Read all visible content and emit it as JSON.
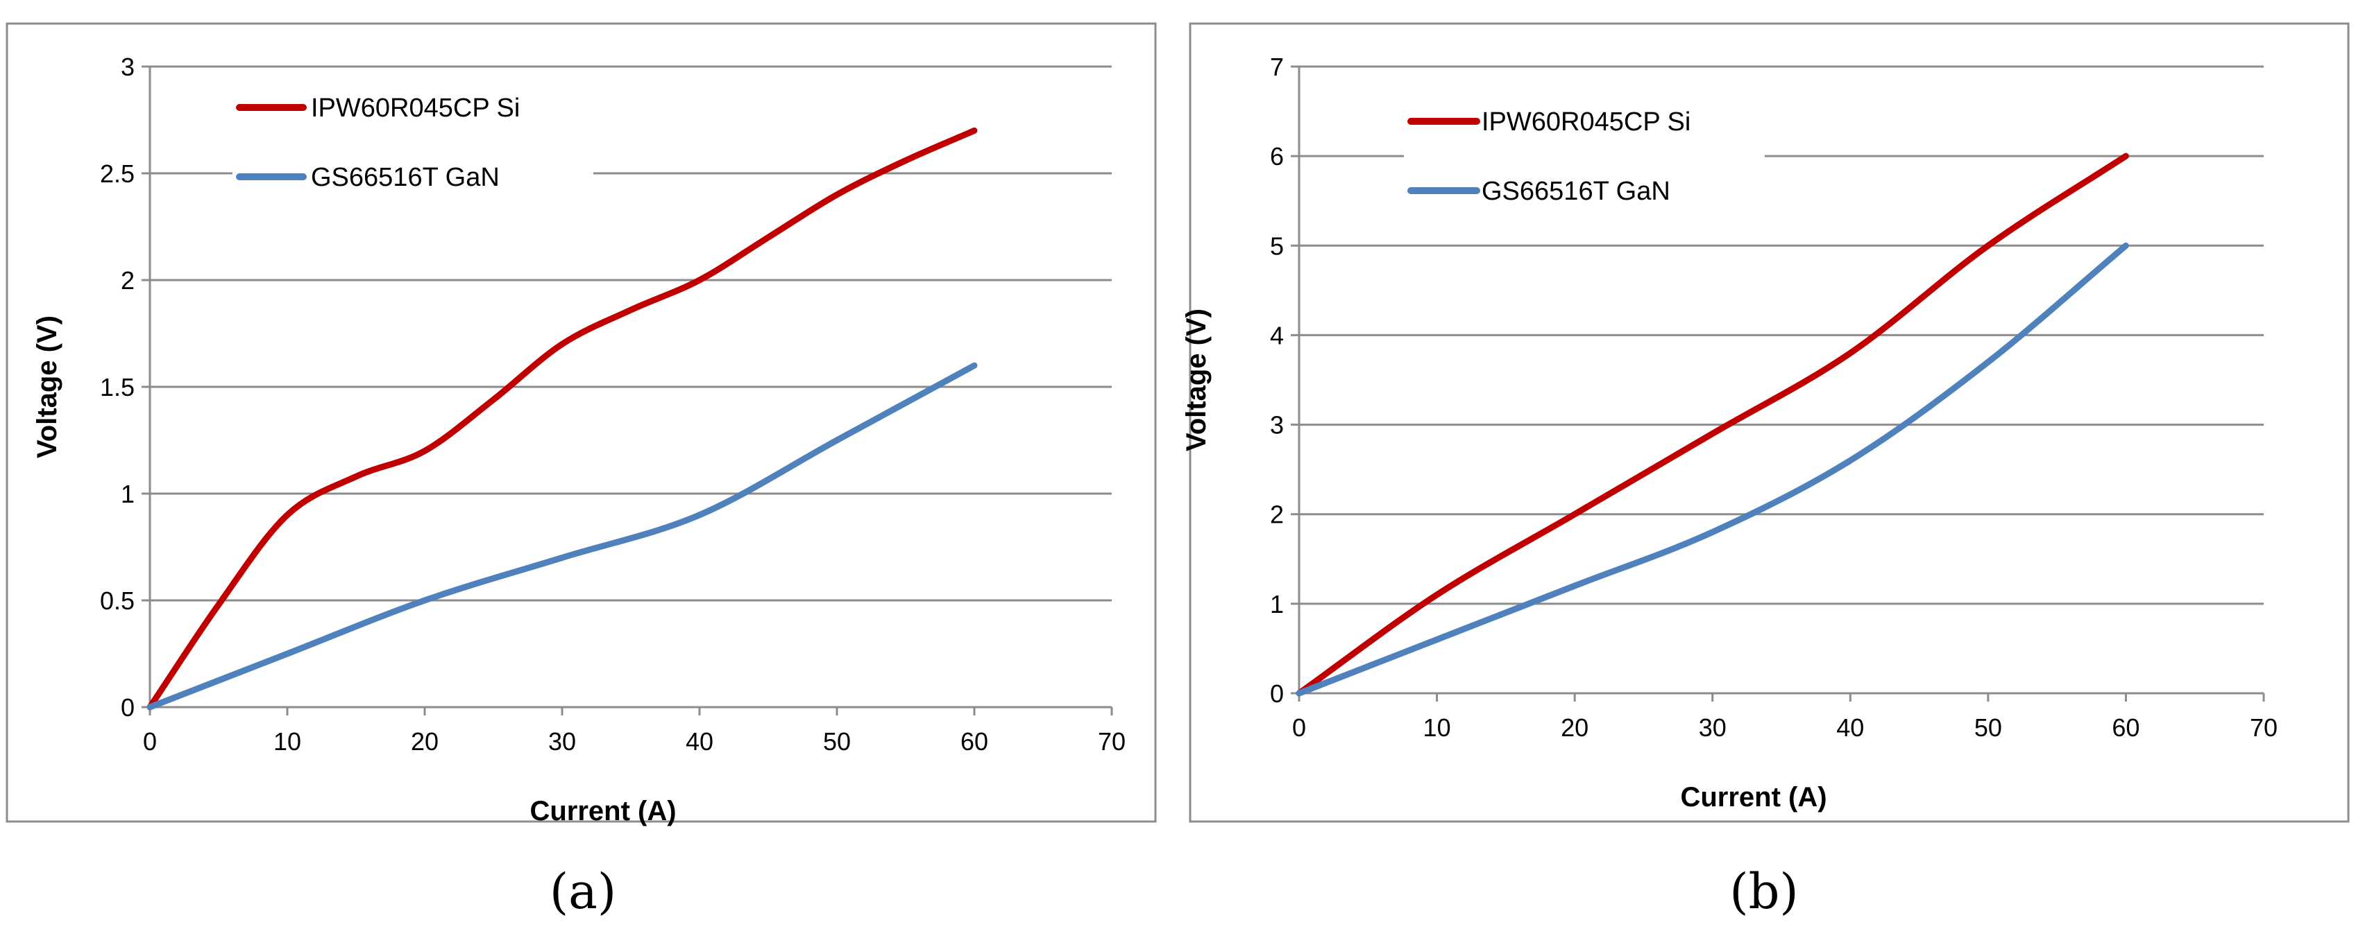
{
  "chart_data": [
    {
      "type": "line",
      "caption": "(a)",
      "xlabel": "Current (A)",
      "ylabel": "Voltage (V)",
      "xlim": [
        0,
        70
      ],
      "ylim": [
        0,
        3
      ],
      "xticks": [
        0,
        10,
        20,
        30,
        40,
        50,
        60,
        70
      ],
      "yticks": [
        0,
        0.5,
        1,
        1.5,
        2,
        2.5,
        3
      ],
      "ytick_labels": [
        "0",
        "0.5",
        "1",
        "1.5",
        "2",
        "2.5",
        "3"
      ],
      "grid": "horizontal",
      "legend_position": "top-left",
      "series": [
        {
          "name": "IPW60R045CP Si",
          "color": "#C00000",
          "x": [
            0,
            5,
            10,
            15,
            20,
            25,
            30,
            35,
            40,
            45,
            50,
            55,
            60
          ],
          "y": [
            0,
            0.48,
            0.9,
            1.08,
            1.2,
            1.44,
            1.7,
            1.86,
            2.0,
            2.2,
            2.4,
            2.56,
            2.7
          ]
        },
        {
          "name": "GS66516T GaN",
          "color": "#4F81BD",
          "x": [
            0,
            10,
            20,
            30,
            40,
            50,
            60
          ],
          "y": [
            0,
            0.25,
            0.5,
            0.7,
            0.9,
            1.25,
            1.6
          ]
        }
      ]
    },
    {
      "type": "line",
      "caption": "(b)",
      "xlabel": "Current (A)",
      "ylabel": "Voltage (V)",
      "xlim": [
        0,
        70
      ],
      "ylim": [
        0,
        7
      ],
      "xticks": [
        0,
        10,
        20,
        30,
        40,
        50,
        60,
        70
      ],
      "yticks": [
        0,
        1,
        2,
        3,
        4,
        5,
        6,
        7
      ],
      "ytick_labels": [
        "0",
        "1",
        "2",
        "3",
        "4",
        "5",
        "6",
        "7"
      ],
      "grid": "horizontal",
      "legend_position": "top-left",
      "series": [
        {
          "name": "IPW60R045CP Si",
          "color": "#C00000",
          "x": [
            0,
            10,
            20,
            30,
            40,
            50,
            60
          ],
          "y": [
            0,
            1.1,
            2.0,
            2.9,
            3.8,
            5.0,
            6.0
          ]
        },
        {
          "name": "GS66516T GaN",
          "color": "#4F81BD",
          "x": [
            0,
            10,
            20,
            30,
            40,
            50,
            60
          ],
          "y": [
            0,
            0.6,
            1.2,
            1.8,
            2.6,
            3.7,
            5.0
          ]
        }
      ]
    }
  ]
}
